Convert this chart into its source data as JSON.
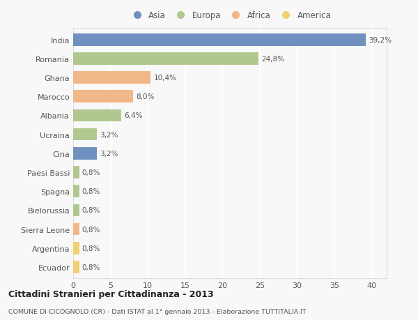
{
  "categories": [
    "India",
    "Romania",
    "Ghana",
    "Marocco",
    "Albania",
    "Ucraina",
    "Cina",
    "Paesi Bassi",
    "Spagna",
    "Bielorussia",
    "Sierra Leone",
    "Argentina",
    "Ecuador"
  ],
  "values": [
    39.2,
    24.8,
    10.4,
    8.0,
    6.4,
    3.2,
    3.2,
    0.8,
    0.8,
    0.8,
    0.8,
    0.8,
    0.8
  ],
  "labels": [
    "39,2%",
    "24,8%",
    "10,4%",
    "8,0%",
    "6,4%",
    "3,2%",
    "3,2%",
    "0,8%",
    "0,8%",
    "0,8%",
    "0,8%",
    "0,8%",
    "0,8%"
  ],
  "colors": [
    "#7090c0",
    "#b0c890",
    "#f0b888",
    "#f0b888",
    "#b0c890",
    "#b0c890",
    "#7090c0",
    "#b0c890",
    "#b0c890",
    "#b0c890",
    "#f0b888",
    "#f0d070",
    "#f0d070"
  ],
  "legend_labels": [
    "Asia",
    "Europa",
    "Africa",
    "America"
  ],
  "legend_colors": [
    "#7090c0",
    "#b0c890",
    "#f0b888",
    "#f0d070"
  ],
  "title": "Cittadini Stranieri per Cittadinanza - 2013",
  "subtitle": "COMUNE DI CICOGNOLO (CR) - Dati ISTAT al 1° gennaio 2013 - Elaborazione TUTTITALIA.IT",
  "xlim": [
    0,
    42
  ],
  "xticks": [
    0,
    5,
    10,
    15,
    20,
    25,
    30,
    35,
    40
  ],
  "background_color": "#f8f8f8",
  "grid_color": "#ffffff",
  "bar_height": 0.65,
  "text_color": "#555555",
  "label_fontsize": 7.5,
  "ytick_fontsize": 8.0,
  "xtick_fontsize": 8.0
}
